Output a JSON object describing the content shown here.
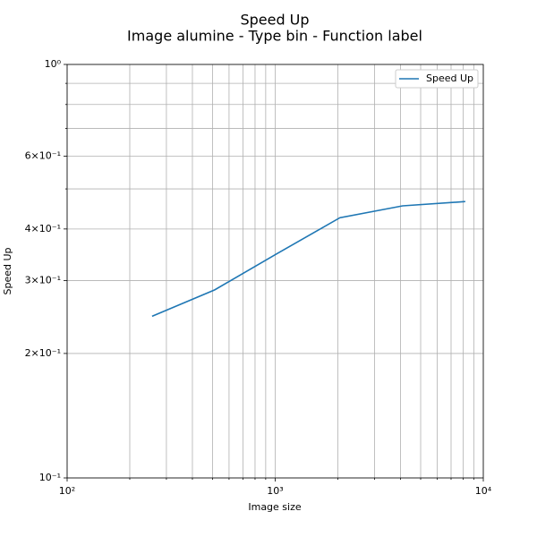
{
  "chart_data": {
    "type": "line",
    "title": "Speed Up",
    "subtitle": "Image alumine - Type bin - Function label",
    "x_label": "Image size",
    "y_label": "Speed Up",
    "x": [
      256,
      512,
      1024,
      2048,
      4096,
      8192
    ],
    "series": [
      {
        "name": "Speed Up",
        "color": "#1f77b4",
        "values": [
          0.246,
          0.285,
          0.349,
          0.426,
          0.455,
          0.466
        ]
      }
    ],
    "xscale": "log",
    "yscale": "log",
    "xlim": [
      100,
      10000
    ],
    "ylim": [
      0.1,
      1
    ],
    "xticks": [
      {
        "value": 100,
        "label": "10²"
      },
      {
        "value": 1000,
        "label": "10³"
      },
      {
        "value": 10000,
        "label": "10⁴"
      }
    ],
    "xminor": [
      200,
      300,
      400,
      500,
      600,
      700,
      800,
      900,
      2000,
      3000,
      4000,
      5000,
      6000,
      7000,
      8000,
      9000
    ],
    "yticks": [
      {
        "value": 0.1,
        "label": "10⁻¹"
      },
      {
        "value": 0.2,
        "label": "2×10⁻¹"
      },
      {
        "value": 0.3,
        "label": "3×10⁻¹"
      },
      {
        "value": 0.4,
        "label": "4×10⁻¹"
      },
      {
        "value": 0.6,
        "label": "6×10⁻¹"
      },
      {
        "value": 1,
        "label": "10⁰"
      }
    ],
    "yminor": [
      0.5,
      0.7,
      0.8,
      0.9
    ],
    "grid": true,
    "legend": "upper right"
  }
}
